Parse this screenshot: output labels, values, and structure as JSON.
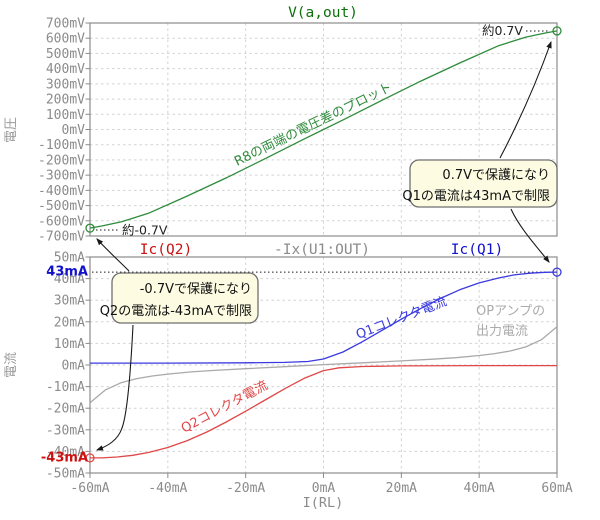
{
  "colors": {
    "green_trace": "#2e8b3a",
    "green_title": "#0b720b",
    "red_trace": "#e04848",
    "red_label": "#cc1111",
    "blue_trace": "#3a3ae0",
    "blue_label": "#1111cc",
    "gray_trace": "#a9a9a9",
    "axis_gray": "#8b8b8b",
    "grid_gray": "#d2d2d2",
    "annotation_bg": "#fdfce2"
  },
  "chart_data": [
    {
      "type": "line",
      "panel": "top",
      "title": "V(a,out)",
      "ylabel": "電圧",
      "y_tick_labels": [
        "700mV",
        "600mV",
        "500mV",
        "400mV",
        "300mV",
        "200mV",
        "100mV",
        "0mV",
        "-100mV",
        "-200mV",
        "-300mV",
        "-400mV",
        "-500mV",
        "-600mV",
        "-700mV"
      ],
      "y_tick_values": [
        700,
        600,
        500,
        400,
        300,
        200,
        100,
        0,
        -100,
        -200,
        -300,
        -400,
        -500,
        -600,
        -700
      ],
      "ylim_mV": [
        -700,
        700
      ],
      "x_grid_values": [
        -40,
        -20,
        0,
        20,
        40
      ],
      "series": [
        {
          "name": "V(a,out)",
          "color": "#2e8b3a",
          "curve_label": "R8の両端の電圧差のプロット",
          "x_mA": [
            -60,
            -57,
            -52,
            -45,
            -35,
            -25,
            -15,
            -5,
            0,
            5,
            15,
            25,
            35,
            45,
            52,
            57,
            60
          ],
          "y_mV": [
            -648,
            -634,
            -607,
            -551,
            -437,
            -318,
            -192,
            -63,
            0,
            63,
            192,
            318,
            437,
            551,
            607,
            634,
            648
          ]
        }
      ],
      "markers": [
        {
          "x_mA": -60,
          "y_mV": -648,
          "color": "#2e8b3a",
          "note": "約-0.7V"
        },
        {
          "x_mA": 60,
          "y_mV": 648,
          "color": "#2e8b3a",
          "note": "約0.7V"
        }
      ],
      "annotations": {
        "right_point_label": "約0.7V",
        "left_point_label": "約-0.7V",
        "box_line1": "0.7Vで保護になり",
        "box_line2": "Q1の電流は43mAで制限"
      }
    },
    {
      "type": "line",
      "panel": "bottom",
      "ylabel": "電流",
      "xlabel": "I(RL)",
      "legend": [
        "Ic(Q2)",
        "-Ix(U1:OUT)",
        "Ic(Q1)"
      ],
      "legend_colors": [
        "#cc1111",
        "#8b8b8b",
        "#1111cc"
      ],
      "y_tick_labels": [
        "50mA",
        "40mA",
        "30mA",
        "20mA",
        "10mA",
        "0mA",
        "-10mA",
        "-20mA",
        "-30mA",
        "-40mA",
        "-50mA"
      ],
      "y_tick_values": [
        50,
        40,
        30,
        20,
        10,
        0,
        -10,
        -20,
        -30,
        -40,
        -50
      ],
      "ylim_mA": [
        -50,
        50
      ],
      "x_tick_labels": [
        "-60mA",
        "-40mA",
        "-20mA",
        "0mA",
        "20mA",
        "40mA",
        "60mA"
      ],
      "x_tick_values": [
        -60,
        -40,
        -20,
        0,
        20,
        40,
        60
      ],
      "x_grid_values": [
        -40,
        -20,
        0,
        20,
        40
      ],
      "xlim_mA": [
        -60,
        60
      ],
      "series": [
        {
          "name": "Ic(Q2)",
          "color": "#e04848",
          "curve_label": "Q2コレクタ電流",
          "x_mA": [
            -60,
            -57,
            -53,
            -49,
            -45,
            -40,
            -35,
            -30,
            -25,
            -20,
            -15,
            -10,
            -5,
            0,
            4,
            10,
            20,
            40,
            60
          ],
          "y_mA": [
            -43,
            -43,
            -42.6,
            -41.8,
            -40.5,
            -38.2,
            -35,
            -31,
            -26.4,
            -21.4,
            -16.2,
            -11,
            -6.2,
            -2.6,
            -1.3,
            -0.7,
            -0.4,
            -0.3,
            -0.3
          ]
        },
        {
          "name": "-Ix(U1:OUT)",
          "color": "#a9a9a9",
          "curve_label": "OPアンプの出力電流",
          "x_mA": [
            -60,
            -56,
            -52,
            -48,
            -44,
            -40,
            -34,
            -28,
            -20,
            -10,
            0,
            10,
            20,
            28,
            34,
            40,
            44,
            48,
            52,
            56,
            60
          ],
          "y_mA": [
            -17.5,
            -11.5,
            -8.2,
            -6.3,
            -5.1,
            -4.2,
            -3.2,
            -2.5,
            -1.7,
            -0.8,
            0.2,
            1,
            1.9,
            2.7,
            3.4,
            4.4,
            5.3,
            6.5,
            8.4,
            11.7,
            17.7
          ]
        },
        {
          "name": "Ic(Q1)",
          "color": "#3a3ae0",
          "curve_label": "Q1コレクタ電流",
          "x_mA": [
            -60,
            -40,
            -20,
            -10,
            -4,
            0,
            5,
            10,
            15,
            20,
            25,
            30,
            35,
            40,
            45,
            49,
            53,
            57,
            60
          ],
          "y_mA": [
            0.9,
            0.9,
            1,
            1.2,
            1.6,
            2.8,
            6,
            10.8,
            16,
            21.2,
            26.2,
            30.8,
            34.8,
            38,
            40.3,
            41.7,
            42.5,
            42.9,
            43
          ]
        }
      ],
      "ref_line": {
        "y_mA": 43,
        "style": "dotted",
        "color": "#1a1a1a"
      },
      "markers": [
        {
          "x_mA": 60,
          "y_mA": 43,
          "color": "#3a3ae0",
          "note": "43mA"
        },
        {
          "x_mA": -60,
          "y_mA": -43,
          "color": "#e04848",
          "note": "-43mA"
        }
      ],
      "annotations": {
        "limit_pos_label": "43mA",
        "limit_neg_label": "-43mA",
        "box_line1": "-0.7Vで保護になり",
        "box_line2": "Q2の電流は-43mAで制限",
        "gray_label_line1": "OPアンプの",
        "gray_label_line2": "出力電流"
      }
    }
  ]
}
